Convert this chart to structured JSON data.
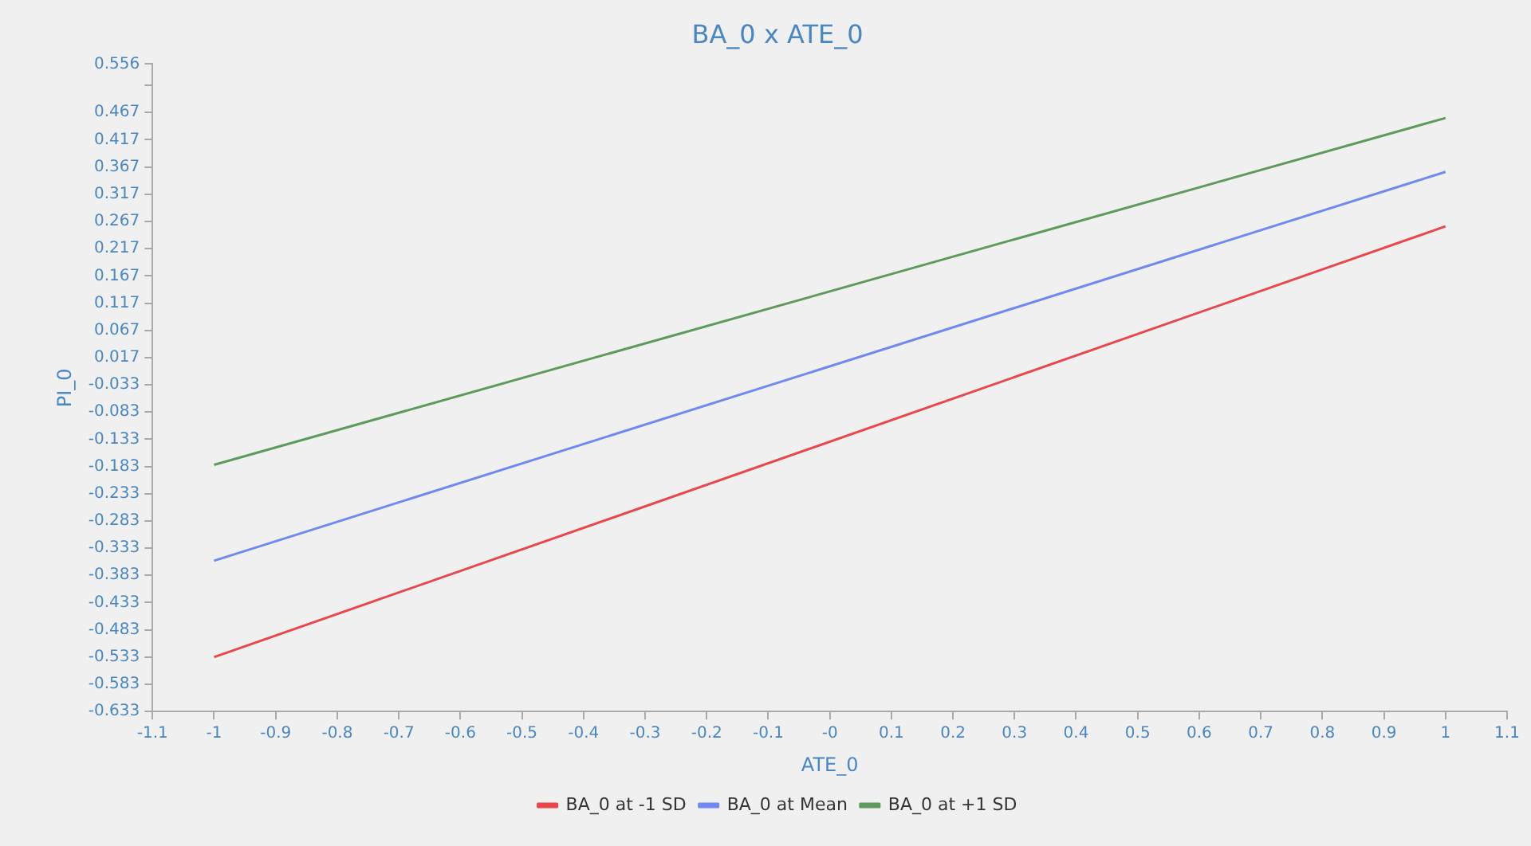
{
  "chart_data": {
    "type": "line",
    "title": "BA_0 x ATE_0",
    "xlabel": "ATE_0",
    "ylabel": "PI_0",
    "x": [
      -1,
      1
    ],
    "series": [
      {
        "name": "BA_0 at -1 SD",
        "color": "#e8474b",
        "values": [
          -0.533,
          0.258
        ]
      },
      {
        "name": "BA_0 at Mean",
        "color": "#6f89f0",
        "values": [
          -0.356,
          0.358
        ]
      },
      {
        "name": "BA_0 at +1 SD",
        "color": "#5e9a5a",
        "values": [
          -0.18,
          0.457
        ]
      }
    ],
    "xlim": [
      -1.1,
      1.1
    ],
    "xticks": [
      -1.1,
      -1,
      -0.9,
      -0.8,
      -0.7,
      -0.6,
      -0.5,
      -0.4,
      -0.3,
      -0.2,
      -0.1,
      {
        "value": 0,
        "label": "-0"
      },
      0.1,
      0.2,
      0.3,
      0.4,
      0.5,
      0.6,
      0.7,
      0.8,
      0.9,
      1,
      1.1
    ],
    "ylim": [
      -0.633,
      0.556
    ],
    "yticks": [
      -0.633,
      -0.583,
      -0.533,
      -0.483,
      -0.433,
      -0.383,
      -0.333,
      -0.283,
      -0.233,
      -0.183,
      -0.133,
      -0.083,
      -0.033,
      0.017,
      0.067,
      0.117,
      0.167,
      0.217,
      0.267,
      0.317,
      0.367,
      0.417,
      0.467,
      {
        "value": 0.517,
        "label": null
      },
      0.556
    ],
    "grid": false,
    "legend": "bottom",
    "marker": "none",
    "line_style": "solid"
  }
}
